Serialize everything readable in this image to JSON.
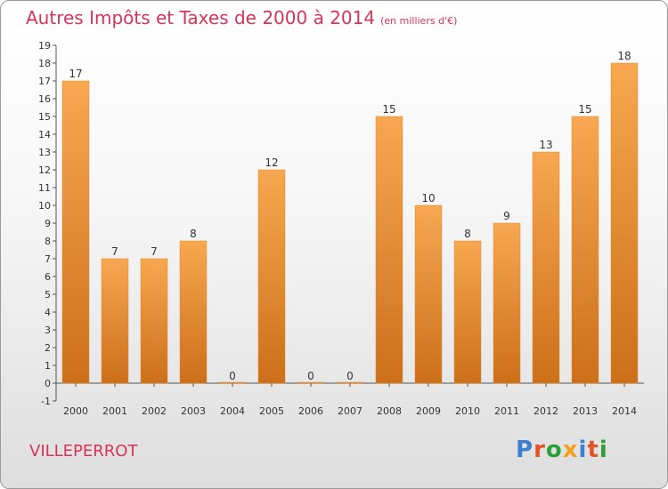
{
  "title": "Autres Impôts et Taxes de 2000 à 2014",
  "unit": "(en milliers d'€)",
  "commune": "VILLEPERROT",
  "logo": {
    "text": "Proxiti",
    "colors": [
      "#3d7fd0",
      "#e0542b",
      "#2e9e3a",
      "#f3a21e",
      "#3d7fd0",
      "#e0542b",
      "#2e9e3a"
    ]
  },
  "colors": {
    "bar_top": "#f7a851",
    "bar_bottom": "#cc6f1b",
    "title": "#d6345a"
  },
  "chart_data": {
    "type": "bar",
    "title": "Autres Impôts et Taxes de 2000 à 2014",
    "subtitle": "(en milliers d'€)",
    "categories": [
      "2000",
      "2001",
      "2002",
      "2003",
      "2004",
      "2005",
      "2006",
      "2007",
      "2008",
      "2009",
      "2010",
      "2011",
      "2012",
      "2013",
      "2014"
    ],
    "values": [
      17,
      7,
      7,
      8,
      0,
      12,
      0,
      0,
      15,
      10,
      8,
      9,
      13,
      15,
      18
    ],
    "ylim": [
      -1,
      19
    ],
    "yticks": [
      "-1",
      "0",
      "",
      "1",
      "2",
      "3",
      "4",
      "5",
      "6",
      "7",
      "8",
      "9",
      "10",
      "11",
      "12",
      "13",
      "14",
      "15",
      "16",
      "17",
      "18",
      "19"
    ],
    "grid": false
  }
}
